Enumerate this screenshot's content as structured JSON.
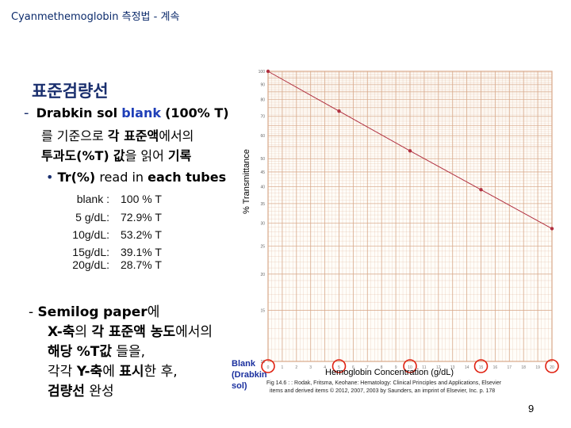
{
  "title": "Cyanmethemoglobin 측정법 - 계속",
  "heading": "표준검량선",
  "bullet1": {
    "dash": "-",
    "line1_a": "Drabkin sol",
    "line1_b": "blank",
    "line1_c": "(100% T)",
    "line2_a": "를 기준으로",
    "line2_b": "각 표준액",
    "line2_c": "에서의",
    "line3_a": "투과도(%T)",
    "line3_b": "값",
    "line3_c": "을 읽어",
    "line3_d": "기록",
    "sub_bullet": "Tr(%)",
    "sub_bullet_rest": "read in",
    "sub_bullet_end": "each tubes"
  },
  "table": [
    {
      "label": "blank :",
      "value": "100 % T"
    },
    {
      "label": "5 g/dL:",
      "value": "72.9% T"
    },
    {
      "label": "10g/dL:",
      "value": "53.2% T"
    },
    {
      "label": "15g/dL:",
      "value": "39.1% T"
    },
    {
      "label": "20g/dL:",
      "value": "28.7% T"
    }
  ],
  "bullet2": {
    "dash": "-",
    "line1_a": "Semilog",
    "line1_b": "paper",
    "line1_c": "에",
    "line2_a": "X-축",
    "line2_b": "의",
    "line2_c": "각 표준액 농도",
    "line2_d": "에서의",
    "line3_a": "해당",
    "line3_b": "%T값",
    "line3_c": "들을,",
    "line4_a": "각각",
    "line4_b": "Y-축",
    "line4_c": "에",
    "line4_d": "표시",
    "line4_e": "한 후,",
    "line5_a": "검량선",
    "line5_b": "완성"
  },
  "chart_note": [
    "Blank",
    "(Drabkin",
    "sol)"
  ],
  "citation": [
    "Fig 14.6 : : Rodak, Fritsma, Keohane: Hematology: Clinical Principles and Applications, Elsevier",
    "items and derived items © 2012, 2007, 2003 by Saunders, an imprint of Elsevier, Inc. p. 178"
  ],
  "page_number": "9",
  "colors": {
    "grid": "#d8a88a",
    "line": "#b03040",
    "highlight": "#e02010",
    "navy": "#1a2f6e"
  },
  "chart_data": {
    "type": "line",
    "xlabel": "Hemoglobin Concentration (g/dL)",
    "ylabel": "% Transmittance",
    "x_ticks": [
      "0",
      "5",
      "10",
      "15",
      "20"
    ],
    "y_scale": "log",
    "y_ticks": [
      "10",
      "15",
      "20",
      "25",
      "30",
      "35",
      "40",
      "45",
      "50",
      "60",
      "70",
      "80",
      "90",
      "100"
    ],
    "xlim": [
      0,
      20
    ],
    "ylim": [
      10,
      100
    ],
    "series": [
      {
        "x": [
          0,
          5,
          10,
          15,
          20
        ],
        "y": [
          100,
          72.9,
          53.2,
          39.1,
          28.7
        ]
      }
    ],
    "highlighted_x_ticks": [
      "0",
      "5",
      "10",
      "15",
      "20"
    ],
    "grid": true
  }
}
